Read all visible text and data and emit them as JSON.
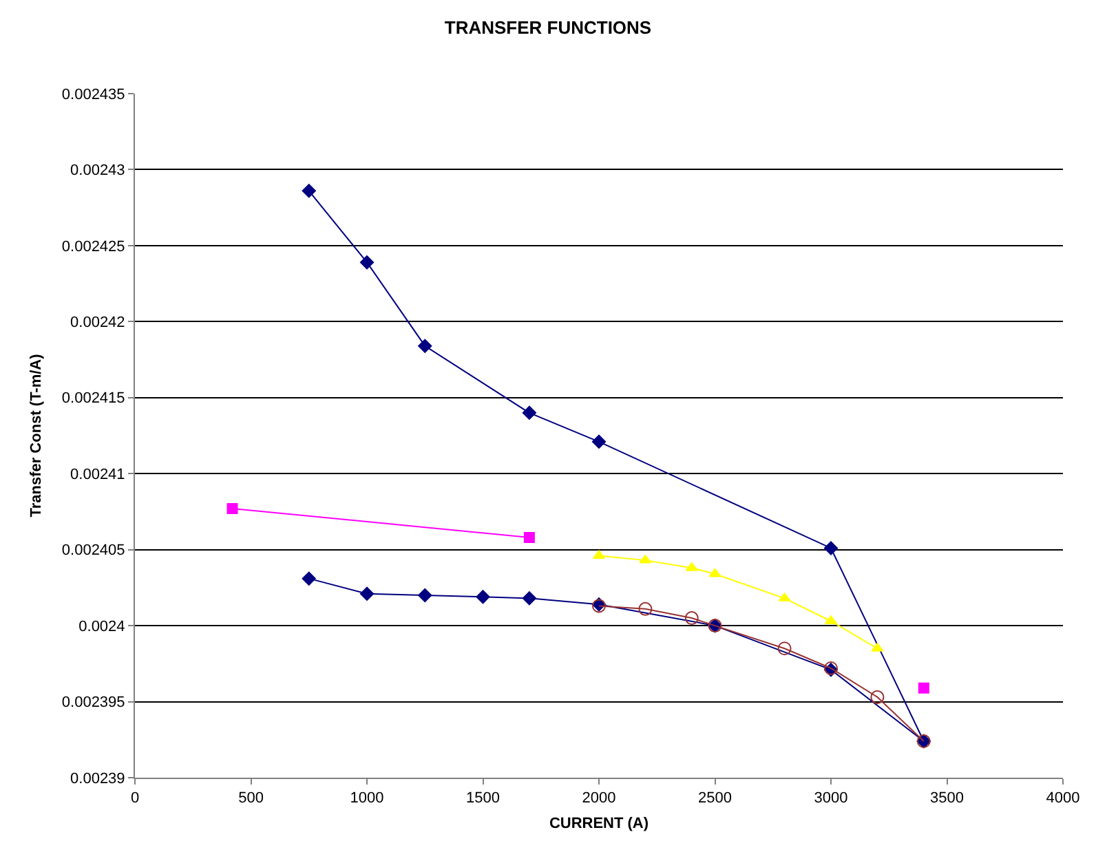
{
  "chart_data": {
    "type": "line",
    "title": "TRANSFER FUNCTIONS",
    "xlabel": "CURRENT (A)",
    "ylabel": "Transfer Const (T-m/A)",
    "xlim": [
      0,
      4000
    ],
    "xticks": [
      0,
      500,
      1000,
      1500,
      2000,
      2500,
      3000,
      3500,
      4000
    ],
    "ylim": [
      0.00239,
      0.002435
    ],
    "yticks": [
      0.00239,
      0.002395,
      0.0024,
      0.002405,
      0.00241,
      0.002415,
      0.00242,
      0.002425,
      0.00243,
      0.002435
    ],
    "grid": "y",
    "series": [
      {
        "color": "#000080",
        "marker": "diamond",
        "x": [
          750,
          1000,
          1250,
          1700,
          2000,
          3000,
          3400
        ],
        "values": [
          0.0024286,
          0.0024239,
          0.0024184,
          0.002414,
          0.0024121,
          0.0024051,
          0.0023924
        ]
      },
      {
        "color": "#ff00ff",
        "marker": "square",
        "x": [
          420,
          1700
        ],
        "values": [
          0.0024077,
          0.0024058
        ]
      },
      {
        "color": "#ff00ff",
        "marker": "square",
        "x": [
          3400
        ],
        "values": [
          0.0023959
        ]
      },
      {
        "color": "#ffff00",
        "marker": "triangle",
        "x": [
          2000,
          2200,
          2400,
          2500,
          2800,
          3000,
          3200
        ],
        "values": [
          0.0024046,
          0.0024043,
          0.0024038,
          0.0024034,
          0.0024018,
          0.0024003,
          0.0023985
        ]
      },
      {
        "color": "#000080",
        "marker": "diamond",
        "x": [
          750,
          1000,
          1250,
          1500,
          1700,
          2000,
          2500,
          3000,
          3400
        ],
        "values": [
          0.0024031,
          0.0024021,
          0.002402,
          0.0024019,
          0.0024018,
          0.0024014,
          0.0024,
          0.0023971,
          0.0023924
        ]
      },
      {
        "color": "#993333",
        "marker": "circle",
        "x": [
          2000,
          2200,
          2400,
          2500,
          2800,
          3000,
          3200,
          3400
        ],
        "values": [
          0.0024013,
          0.0024011,
          0.0024005,
          0.0024,
          0.0023985,
          0.0023972,
          0.0023953,
          0.0023924
        ]
      }
    ]
  }
}
